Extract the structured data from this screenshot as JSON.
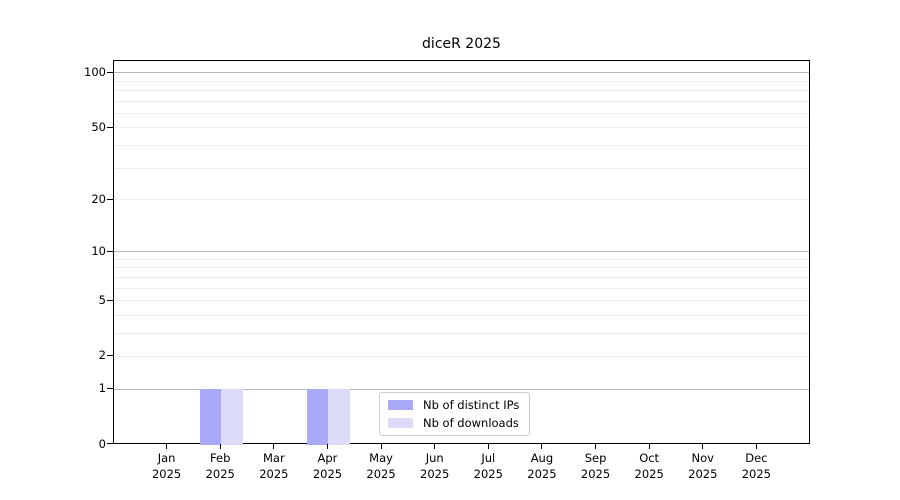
{
  "chart_data": {
    "type": "bar",
    "title": "diceR 2025",
    "categories": [
      "Jan",
      "Feb",
      "Mar",
      "Apr",
      "May",
      "Jun",
      "Jul",
      "Aug",
      "Sep",
      "Oct",
      "Nov",
      "Dec"
    ],
    "category_sublabel": "2025",
    "series": [
      {
        "name": "Nb of distinct IPs",
        "color": "#a9a9f7",
        "values": [
          0,
          1,
          0,
          1,
          0,
          0,
          0,
          0,
          0,
          0,
          0,
          0
        ]
      },
      {
        "name": "Nb of downloads",
        "color": "#dcdcf9",
        "values": [
          0,
          1,
          0,
          1,
          0,
          0,
          0,
          0,
          0,
          0,
          0,
          0
        ]
      }
    ],
    "yscale": "log1p",
    "ylim": [
      0,
      116
    ],
    "y_tick_values": [
      0,
      1,
      2,
      5,
      10,
      20,
      50,
      100
    ],
    "y_major_grid": [
      1,
      10,
      100
    ],
    "y_minor_grid": [
      2,
      3,
      4,
      5,
      6,
      7,
      8,
      9,
      20,
      30,
      40,
      50,
      60,
      70,
      80,
      90
    ],
    "grid": true,
    "legend_position": "inside lower center"
  },
  "colors": {
    "background": "#ffffff",
    "axis": "#000000",
    "major_grid": "#b8b8b8",
    "minor_grid": "#ededed",
    "legend_border": "#cccccc",
    "series_ips": "#a9a9f7",
    "series_downloads": "#dcdcf9"
  }
}
